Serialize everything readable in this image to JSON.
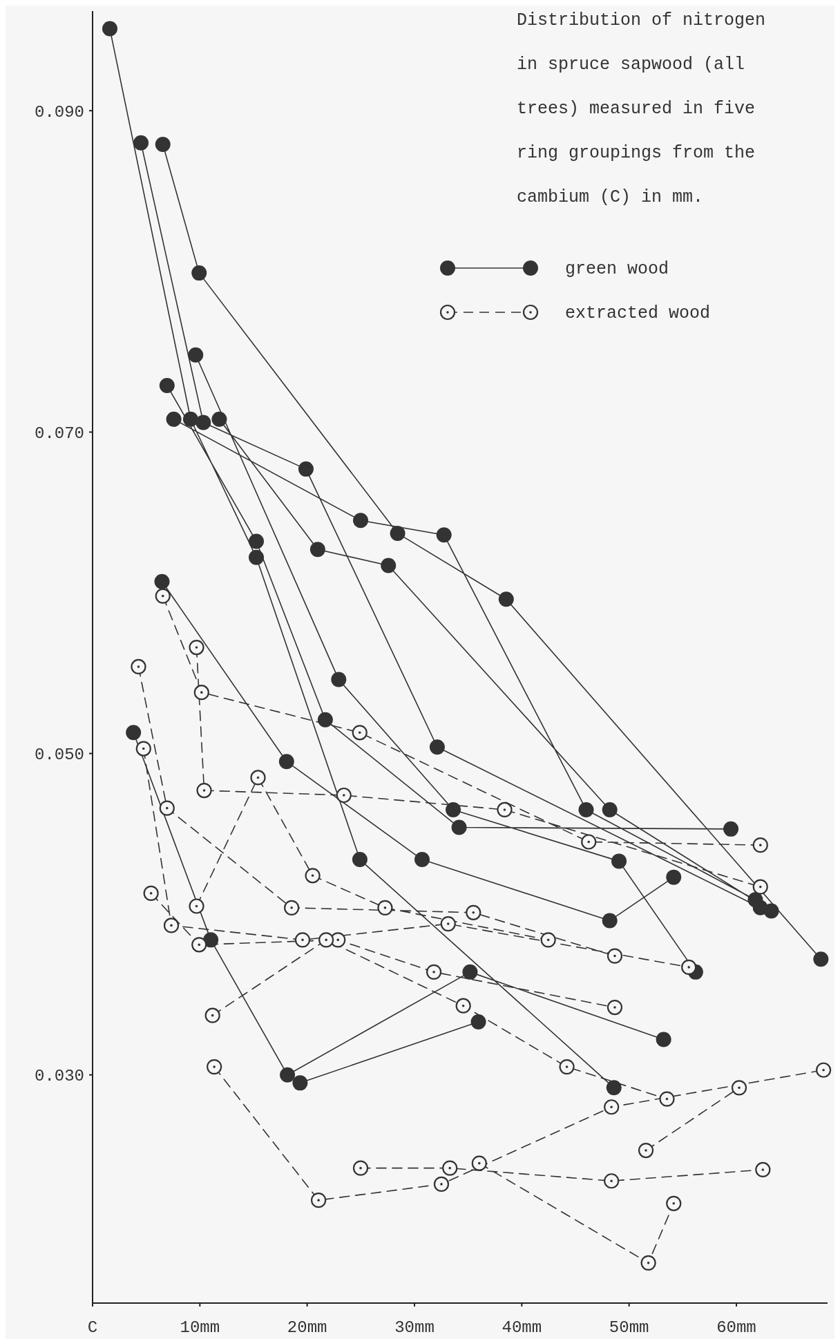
{
  "chart_data": {
    "type": "line",
    "title": "Distribution of nitrogen in spruce sapwood (all trees) measured in five ring groupings from the cambium (C) in mm.",
    "xlim": [
      0,
      68.5
    ],
    "ylim": [
      0.0158,
      0.0962
    ],
    "xticks": [
      {
        "value": 0,
        "label": "C"
      },
      {
        "value": 10,
        "label": "10mm"
      },
      {
        "value": 20,
        "label": "20mm"
      },
      {
        "value": 30,
        "label": "30mm"
      },
      {
        "value": 40,
        "label": "40mm"
      },
      {
        "value": 50,
        "label": "50mm"
      },
      {
        "value": 60,
        "label": "60mm"
      }
    ],
    "yticks": [
      {
        "value": 0.03,
        "label": "0.030"
      },
      {
        "value": 0.05,
        "label": "0.050"
      },
      {
        "value": 0.07,
        "label": "0.070"
      },
      {
        "value": 0.09,
        "label": "0.090"
      }
    ],
    "grid": false,
    "legend": "top right",
    "series": [
      {
        "name": "green wood",
        "color": "#333333",
        "marker": "circle",
        "line_style": "solid",
        "x": [
          1.61,
          9.14,
          15.26,
          24.91,
          48.59,
          null,
          4.51,
          10.32,
          19.89,
          32.12,
          62.24,
          null,
          6.55,
          9.93,
          28.43,
          38.55,
          67.88,
          null,
          6.94,
          15.26,
          21.69,
          34.16,
          59.49,
          null,
          7.57,
          24.98,
          32.75,
          46.0,
          61.77,
          null,
          11.81,
          20.98,
          27.57,
          48.2,
          63.26,
          null,
          9.61,
          22.94,
          33.61,
          49.06,
          56.2,
          null,
          6.47,
          18.08,
          30.71,
          48.2,
          54.16,
          null,
          3.81,
          11.02,
          18.16,
          35.18,
          53.22,
          null,
          19.34,
          35.96
        ],
        "values": [
          0.0951,
          0.0708,
          0.0622,
          0.0434,
          0.0292,
          null,
          0.088,
          0.0706,
          0.0677,
          0.0504,
          0.0404,
          null,
          0.0879,
          0.0799,
          0.0637,
          0.0596,
          0.0372,
          null,
          0.0729,
          0.0632,
          0.0521,
          0.0454,
          0.0453,
          null,
          0.0708,
          0.0645,
          0.0636,
          0.0465,
          0.0409,
          null,
          0.0708,
          0.0627,
          0.0617,
          0.0465,
          0.0402,
          null,
          0.0748,
          0.0546,
          0.0465,
          0.0433,
          0.0364,
          null,
          0.0607,
          0.0495,
          0.0434,
          0.0396,
          0.0423,
          null,
          0.0513,
          0.0384,
          0.03,
          0.0364,
          0.0322,
          null,
          0.0295,
          0.0333
        ]
      },
      {
        "name": "extracted wood",
        "color": "#333333",
        "marker": "circle",
        "line_style": "dashed",
        "x": [
          6.55,
          10.16,
          24.9,
          46.24,
          62.24,
          null,
          9.69,
          10.4,
          23.42,
          38.4,
          62.24,
          null,
          4.28,
          6.94,
          18.55,
          35.49,
          48.67,
          null,
          4.75,
          7.34,
          19.57,
          33.14,
          55.57,
          null,
          5.45,
          9.93,
          22.87,
          31.81,
          48.67,
          null,
          9.69,
          15.42,
          20.51,
          27.26,
          42.47,
          null,
          11.18,
          21.77,
          34.55,
          44.2,
          53.53,
          null,
          11.34,
          21.06,
          32.51,
          48.36,
          68.12,
          null,
          24.98,
          33.3,
          48.36,
          62.47,
          null,
          36.04,
          51.8,
          54.16,
          null,
          51.57,
          60.26
        ],
        "values": [
          0.0598,
          0.0538,
          0.0513,
          0.0445,
          0.0443,
          null,
          0.0566,
          0.0477,
          0.0474,
          0.0465,
          0.0417,
          null,
          0.0554,
          0.0466,
          0.0404,
          0.0401,
          0.0374,
          null,
          0.0503,
          0.0393,
          0.0384,
          0.0394,
          0.0367,
          null,
          0.0413,
          0.0381,
          0.0384,
          0.0364,
          0.0342,
          null,
          0.0405,
          0.0485,
          0.0424,
          0.0404,
          0.0384,
          null,
          0.0337,
          0.0384,
          0.0343,
          0.0305,
          0.0285,
          null,
          0.0305,
          0.0222,
          0.0232,
          0.028,
          0.0303,
          null,
          0.0242,
          0.0242,
          0.0234,
          0.0241,
          null,
          0.0245,
          0.0183,
          0.022,
          null,
          0.0253,
          0.0292
        ]
      }
    ]
  }
}
